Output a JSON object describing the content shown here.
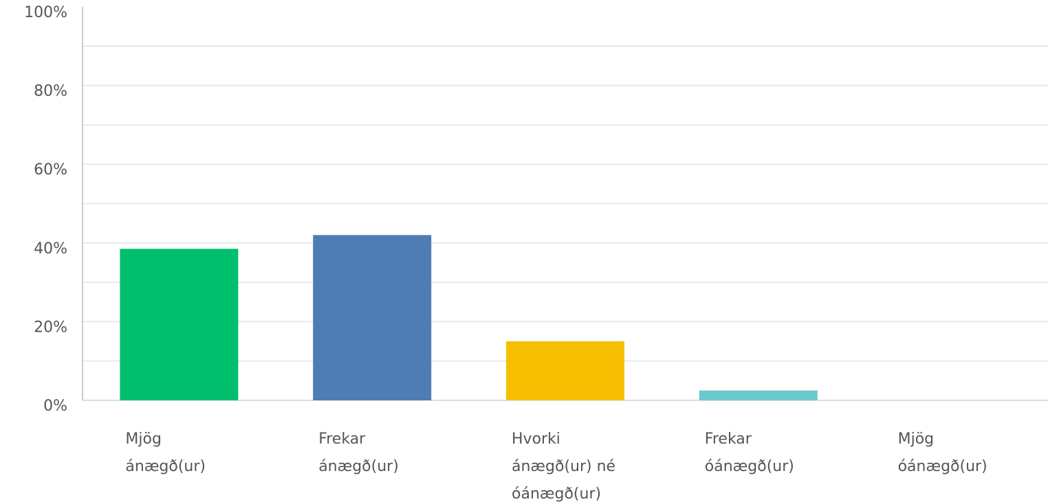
{
  "chart_data": {
    "type": "bar",
    "categories": [
      [
        "Mjög",
        "ánægð(ur)"
      ],
      [
        "Frekar",
        "ánægð(ur)"
      ],
      [
        "Hvorki",
        "ánægð(ur) né",
        "óánægð(ur)"
      ],
      [
        "Frekar",
        "óánægð(ur)"
      ],
      [
        "Mjög",
        "óánægð(ur)"
      ]
    ],
    "values": [
      38.5,
      42,
      15,
      2.5,
      0
    ],
    "colors": [
      "#00bf6f",
      "#507cb6",
      "#f6bf00",
      "#6bc8cd",
      "#dddddd"
    ],
    "ylim": [
      0,
      100
    ],
    "yticks": [
      "0%",
      "20%",
      "40%",
      "60%",
      "80%",
      "100%"
    ],
    "gridlines": true,
    "legend": "none"
  }
}
